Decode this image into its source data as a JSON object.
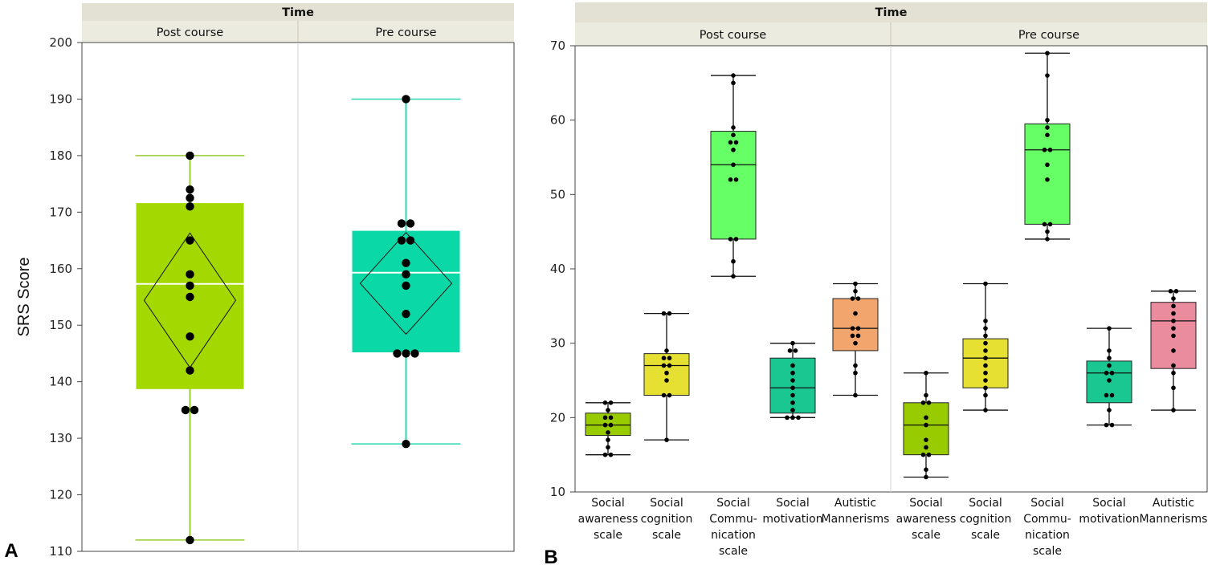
{
  "panels": {
    "a_label": "A",
    "b_label": "B"
  },
  "chart_data": [
    {
      "type": "box",
      "panel": "A",
      "group_header": "Time",
      "ylabel": "SRS Score",
      "ylim": [
        110,
        200
      ],
      "yticks": [
        110,
        120,
        130,
        140,
        150,
        160,
        170,
        180,
        190,
        200
      ],
      "grid": false,
      "show_mean_diamond": true,
      "groups": [
        {
          "name": "Post course",
          "color": "#a3d900",
          "whisker_color": "#9acd32",
          "box": {
            "min": 112,
            "q1": 138.7,
            "median": 157.3,
            "q3": 171.6,
            "max": 180
          },
          "mean": {
            "value": 154.4,
            "lower": 142.5,
            "upper": 166.3
          },
          "points": [
            112,
            135,
            135,
            142,
            148,
            155,
            157,
            159,
            165,
            171,
            172.5,
            174,
            180
          ]
        },
        {
          "name": "Pre course",
          "color": "#0ad9a7",
          "whisker_color": "#2ad8b0",
          "box": {
            "min": 129,
            "q1": 145.2,
            "median": 159.3,
            "q3": 166.7,
            "max": 190
          },
          "mean": {
            "value": 157.4,
            "lower": 148.4,
            "upper": 166.4
          },
          "points": [
            129,
            145,
            145,
            145,
            152,
            157,
            159,
            161,
            165,
            165,
            168,
            168,
            190
          ]
        }
      ]
    },
    {
      "type": "box",
      "panel": "B",
      "group_header": "Time",
      "ylim": [
        10,
        70
      ],
      "yticks": [
        10,
        20,
        30,
        40,
        50,
        60,
        70
      ],
      "grid": false,
      "groups": [
        {
          "name": "Post course",
          "boxes": [
            {
              "label": [
                "Social",
                "awareness",
                "scale"
              ],
              "color": "#99cc00",
              "min": 15,
              "q1": 17.6,
              "median": 19,
              "q3": 20.6,
              "max": 22,
              "points": [
                15,
                15,
                16,
                17,
                18,
                19,
                19,
                20,
                20,
                21,
                22,
                22
              ]
            },
            {
              "label": [
                "Social",
                "cognition",
                "scale"
              ],
              "color": "#e6e033",
              "min": 17,
              "q1": 23,
              "median": 27,
              "q3": 28.6,
              "max": 34,
              "points": [
                17,
                23,
                23,
                25,
                26,
                27,
                27,
                28,
                28,
                29,
                34,
                34
              ]
            },
            {
              "label": [
                "Social",
                "Commu-",
                "nication",
                "scale"
              ],
              "color": "#66ff66",
              "min": 39,
              "q1": 44,
              "median": 54,
              "q3": 58.5,
              "max": 66,
              "points": [
                39,
                41,
                44,
                44,
                52,
                52,
                54,
                56,
                57,
                57,
                58,
                59,
                65,
                66
              ]
            },
            {
              "label": [
                "Social",
                "motivation"
              ],
              "color": "#1ac791",
              "min": 20,
              "q1": 20.6,
              "median": 24,
              "q3": 28,
              "max": 30,
              "points": [
                20,
                20,
                20,
                21,
                22,
                23,
                24,
                25,
                26,
                27,
                29,
                29,
                30
              ]
            },
            {
              "label": [
                "Autistic",
                "Mannerisms"
              ],
              "color": "#f2a66e",
              "min": 23,
              "q1": 29,
              "median": 32,
              "q3": 36,
              "max": 38,
              "points": [
                23,
                26,
                27,
                30,
                31,
                31,
                32,
                32,
                34,
                36,
                36,
                37,
                38
              ]
            }
          ]
        },
        {
          "name": "Pre course",
          "boxes": [
            {
              "label": [
                "Social",
                "awareness",
                "scale"
              ],
              "color": "#99cc00",
              "min": 12,
              "q1": 15,
              "median": 19,
              "q3": 22,
              "max": 26,
              "points": [
                12,
                13,
                15,
                15,
                16,
                17,
                19,
                20,
                22,
                22,
                23,
                26
              ]
            },
            {
              "label": [
                "Social",
                "cognition",
                "scale"
              ],
              "color": "#e6e033",
              "min": 21,
              "q1": 24,
              "median": 28,
              "q3": 30.6,
              "max": 38,
              "points": [
                21,
                23,
                24,
                25,
                26,
                27,
                28,
                29,
                30,
                31,
                32,
                33,
                38
              ]
            },
            {
              "label": [
                "Social",
                "Commu-",
                "nication",
                "scale"
              ],
              "color": "#66ff66",
              "min": 44,
              "q1": 46,
              "median": 56,
              "q3": 59.5,
              "max": 69,
              "points": [
                44,
                45,
                46,
                46,
                52,
                54,
                56,
                56,
                58,
                59,
                60,
                66,
                69
              ]
            },
            {
              "label": [
                "Social",
                "motivation"
              ],
              "color": "#1ac791",
              "min": 19,
              "q1": 22,
              "median": 26,
              "q3": 27.6,
              "max": 32,
              "points": [
                19,
                19,
                21,
                23,
                23,
                25,
                26,
                26,
                27,
                28,
                29,
                32
              ]
            },
            {
              "label": [
                "Autistic",
                "Mannerisms"
              ],
              "color": "#eb8c9e",
              "min": 21,
              "q1": 26.6,
              "median": 33,
              "q3": 35.5,
              "max": 37,
              "points": [
                21,
                24,
                26,
                27,
                29,
                31,
                32,
                33,
                34,
                35,
                36,
                37,
                37
              ]
            }
          ]
        }
      ]
    }
  ]
}
